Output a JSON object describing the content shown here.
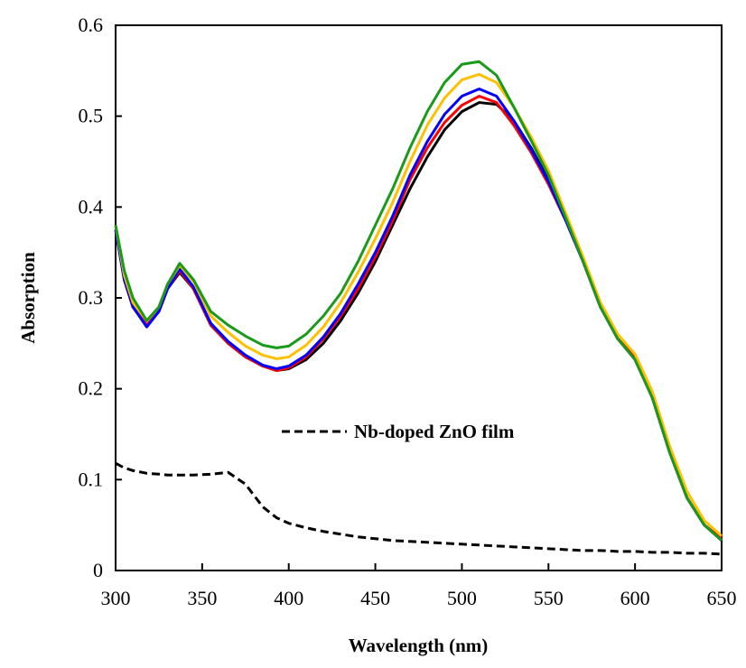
{
  "chart_data": {
    "type": "line",
    "xlabel": "Wavelength (nm)",
    "ylabel": "Absorption",
    "x": [
      300,
      305,
      310,
      318,
      325,
      330,
      337,
      345,
      355,
      365,
      375,
      385,
      393,
      400,
      410,
      420,
      430,
      440,
      450,
      460,
      470,
      480,
      490,
      500,
      510,
      520,
      530,
      540,
      550,
      560,
      570,
      580,
      590,
      600,
      610,
      620,
      630,
      640,
      650
    ],
    "series": [
      {
        "color": "#000000",
        "linestyle": "solid",
        "values": [
          0.375,
          0.32,
          0.29,
          0.27,
          0.285,
          0.31,
          0.328,
          0.31,
          0.27,
          0.25,
          0.235,
          0.225,
          0.22,
          0.222,
          0.232,
          0.25,
          0.275,
          0.305,
          0.34,
          0.38,
          0.42,
          0.455,
          0.485,
          0.505,
          0.515,
          0.513,
          0.495,
          0.465,
          0.43,
          0.39,
          0.34,
          0.29,
          0.255,
          0.235,
          0.19,
          0.13,
          0.08,
          0.05,
          0.035
        ]
      },
      {
        "color": "#ff0000",
        "linestyle": "solid",
        "values": [
          0.375,
          0.32,
          0.29,
          0.27,
          0.285,
          0.31,
          0.33,
          0.31,
          0.27,
          0.25,
          0.235,
          0.225,
          0.22,
          0.223,
          0.235,
          0.255,
          0.28,
          0.31,
          0.345,
          0.385,
          0.43,
          0.465,
          0.493,
          0.512,
          0.522,
          0.515,
          0.49,
          0.46,
          0.425,
          0.385,
          0.34,
          0.29,
          0.255,
          0.235,
          0.19,
          0.13,
          0.08,
          0.05,
          0.035
        ]
      },
      {
        "color": "#0000ff",
        "linestyle": "solid",
        "values": [
          0.375,
          0.32,
          0.29,
          0.268,
          0.285,
          0.31,
          0.332,
          0.312,
          0.272,
          0.252,
          0.237,
          0.226,
          0.222,
          0.225,
          0.237,
          0.257,
          0.283,
          0.315,
          0.35,
          0.39,
          0.435,
          0.472,
          0.502,
          0.522,
          0.53,
          0.522,
          0.495,
          0.463,
          0.428,
          0.385,
          0.34,
          0.29,
          0.255,
          0.232,
          0.19,
          0.13,
          0.08,
          0.05,
          0.033
        ]
      },
      {
        "color": "#ffc000",
        "linestyle": "solid",
        "values": [
          0.38,
          0.325,
          0.295,
          0.275,
          0.29,
          0.315,
          0.336,
          0.318,
          0.28,
          0.262,
          0.247,
          0.237,
          0.233,
          0.235,
          0.248,
          0.268,
          0.295,
          0.328,
          0.365,
          0.405,
          0.45,
          0.49,
          0.52,
          0.54,
          0.546,
          0.537,
          0.51,
          0.477,
          0.44,
          0.393,
          0.345,
          0.295,
          0.26,
          0.238,
          0.197,
          0.137,
          0.087,
          0.055,
          0.038
        ]
      },
      {
        "color": "#1a9a1a",
        "linestyle": "solid",
        "values": [
          0.38,
          0.33,
          0.3,
          0.275,
          0.29,
          0.315,
          0.338,
          0.32,
          0.285,
          0.27,
          0.258,
          0.248,
          0.245,
          0.247,
          0.26,
          0.28,
          0.305,
          0.34,
          0.38,
          0.42,
          0.465,
          0.505,
          0.537,
          0.557,
          0.56,
          0.545,
          0.51,
          0.473,
          0.435,
          0.388,
          0.34,
          0.29,
          0.255,
          0.232,
          0.19,
          0.13,
          0.08,
          0.05,
          0.033
        ]
      },
      {
        "name": "Nb-doped ZnO film",
        "color": "#000000",
        "linestyle": "dashed",
        "values": [
          0.118,
          0.113,
          0.11,
          0.107,
          0.106,
          0.105,
          0.105,
          0.105,
          0.106,
          0.108,
          0.095,
          0.07,
          0.058,
          0.052,
          0.047,
          0.043,
          0.04,
          0.037,
          0.035,
          0.033,
          0.032,
          0.031,
          0.03,
          0.029,
          0.028,
          0.027,
          0.026,
          0.025,
          0.024,
          0.023,
          0.022,
          0.022,
          0.021,
          0.021,
          0.02,
          0.02,
          0.019,
          0.019,
          0.018
        ]
      }
    ],
    "xlim": [
      300,
      650
    ],
    "xticks": [
      300,
      350,
      400,
      450,
      500,
      550,
      600,
      650
    ],
    "ylim": [
      0,
      0.6
    ],
    "yticks": [
      0,
      0.1,
      0.2,
      0.3,
      0.4,
      0.5,
      0.6
    ],
    "grid": false
  }
}
